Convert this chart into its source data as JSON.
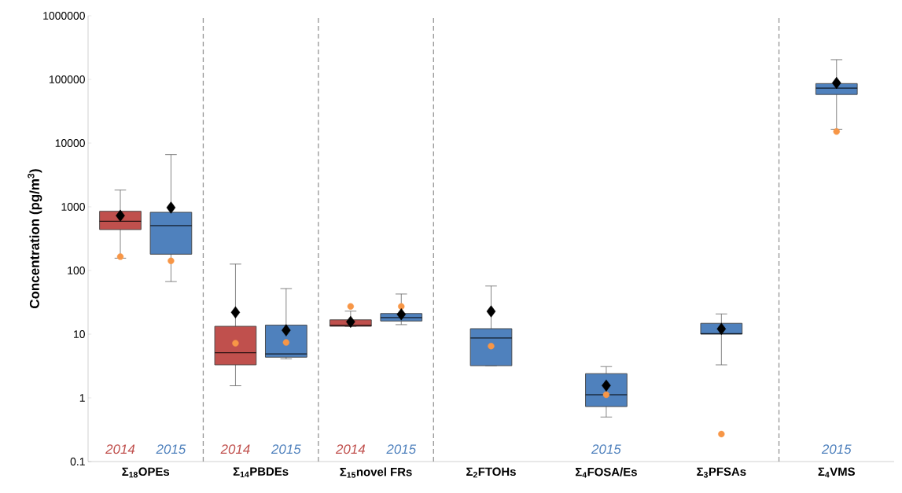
{
  "chart_data": {
    "type": "box",
    "ylabel": "Concentration (pg/m$^{3}$)",
    "categories": [
      "Σ$_{18}$OPEs",
      "Σ$_{14}$PBDEs",
      "Σ$_{15}$novel FRs",
      "Σ$_{2}$FTOHs",
      "Σ$_{4}$FOSA/Es",
      "Σ$_{3}$PFSAs",
      "Σ$_{4}$VMS"
    ],
    "log": "y",
    "ylim": [
      0.1,
      1000000
    ],
    "yticks": [
      0.1,
      1,
      10,
      100,
      1000,
      10000,
      100000,
      1000000
    ],
    "series": [
      {
        "name": "2014",
        "color": "#c0504d",
        "boxes": [
          {
            "low": 156,
            "q1": 439,
            "median": 594,
            "q3": 850,
            "high": 1830,
            "mean": 725
          },
          {
            "low": 1.55,
            "q1": 3.3,
            "median": 5.1,
            "q3": 13.3,
            "high": 126,
            "mean": 22
          },
          {
            "low": 13.2,
            "q1": 13.3,
            "median": 13.8,
            "q3": 16.8,
            "high": 23,
            "mean": 15.6
          },
          null,
          null,
          null,
          null
        ]
      },
      {
        "name": "2015",
        "color": "#4f81bd",
        "boxes": [
          {
            "low": 67,
            "q1": 180,
            "median": 506,
            "q3": 820,
            "high": 6590,
            "mean": 972
          },
          {
            "low": 4.1,
            "q1": 4.35,
            "median": 4.9,
            "q3": 13.9,
            "high": 52,
            "mean": 11.5
          },
          {
            "low": 14.1,
            "q1": 16.1,
            "median": 18.2,
            "q3": 21.1,
            "high": 42.7,
            "mean": 20.5
          },
          {
            "low": 3.2,
            "q1": 3.2,
            "median": 8.7,
            "q3": 12.2,
            "high": 57,
            "mean": 22.8
          },
          {
            "low": 0.5,
            "q1": 0.73,
            "median": 1.12,
            "q3": 2.4,
            "high": 3.1,
            "mean": 1.56
          },
          {
            "low": 3.3,
            "q1": 10,
            "median": 10.2,
            "q3": 14.8,
            "high": 20.8,
            "mean": 12.1
          },
          {
            "low": 16500,
            "q1": 58000,
            "median": 73000,
            "q3": 86000,
            "high": 204000,
            "mean": 88000
          }
        ]
      },
      {
        "type": "scatter",
        "color": "#f79646",
        "marker": "circle",
        "values": [
          165,
          7.2,
          27.3,
          null,
          null,
          null,
          null
        ]
      },
      {
        "type": "scatter",
        "color": "#f79646",
        "marker": "circle",
        "values": [
          142,
          7.4,
          27.3,
          6.5,
          1.12,
          0.27,
          15200
        ]
      }
    ],
    "grid": false,
    "legend": false
  }
}
